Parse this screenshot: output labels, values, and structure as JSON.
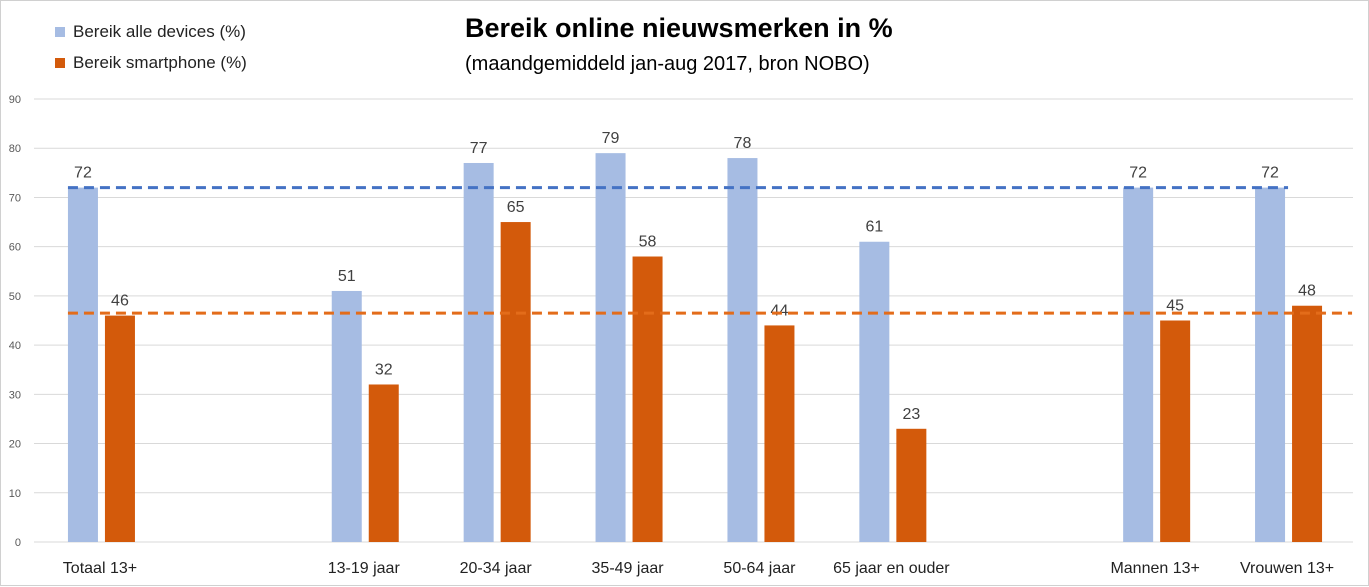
{
  "title": "Bereik online nieuwsmerken in %",
  "subtitle": "(maandgemiddeld jan-aug 2017, bron NOBO)",
  "colors": {
    "all_devices": "#a6bce3",
    "smartphone": "#d35a0b",
    "avg_all_devices": "#4472c4",
    "avg_smartphone": "#e36c1a",
    "grid": "#d9d9d9"
  },
  "chart_data": {
    "type": "bar",
    "title": "Bereik online nieuwsmerken in %",
    "subtitle": "(maandgemiddeld jan-aug 2017, bron NOBO)",
    "categories": [
      "Totaal 13+",
      "",
      "13-19 jaar",
      "20-34 jaar",
      "35-49 jaar",
      "50-64 jaar",
      "65 jaar en ouder",
      "",
      "Mannen 13+",
      "Vrouwen 13+"
    ],
    "series": [
      {
        "name": "Bereik alle devices (%)",
        "values": [
          72,
          null,
          51,
          77,
          79,
          78,
          61,
          null,
          72,
          72
        ]
      },
      {
        "name": "Bereik smartphone (%)",
        "values": [
          46,
          null,
          32,
          65,
          58,
          44,
          23,
          null,
          45,
          48
        ]
      }
    ],
    "data_labels": {
      "Bereik alle devices (%)": [
        "72",
        "",
        "51",
        "77",
        "79",
        "78",
        "61",
        "",
        "72",
        "72"
      ],
      "Bereik smartphone (%)": [
        "46",
        "",
        "32",
        "65",
        "58",
        "44",
        "23",
        "",
        "45",
        "48"
      ]
    },
    "reference_lines": [
      {
        "series": "Bereik alle devices (%)",
        "value": 72,
        "style": "dashed"
      },
      {
        "series": "Bereik smartphone (%)",
        "value": 46.5,
        "style": "dashed"
      }
    ],
    "yticks": [
      "0",
      "10",
      "20",
      "30",
      "40",
      "50",
      "60",
      "70",
      "80",
      "90"
    ],
    "ylim": [
      0,
      90
    ],
    "xlabel": "",
    "ylabel": "",
    "grid": true,
    "legend_position": "top-left"
  }
}
